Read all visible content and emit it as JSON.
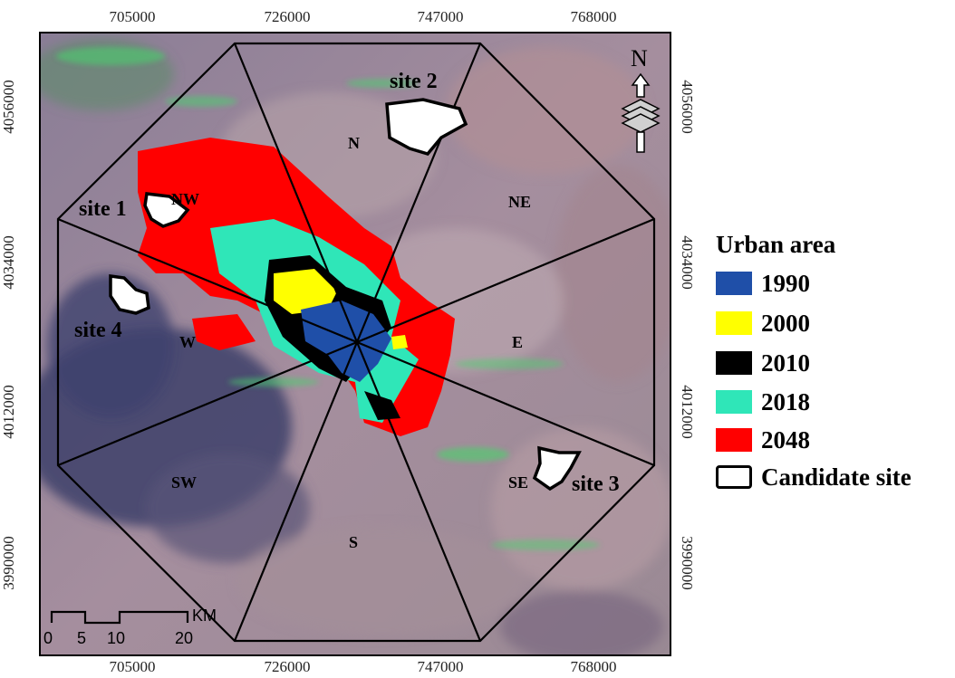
{
  "map": {
    "x_ticks": [
      "705000",
      "726000",
      "747000",
      "768000"
    ],
    "y_ticks": [
      "4056000",
      "4034000",
      "4012000",
      "3990000"
    ],
    "sectors": [
      "N",
      "NE",
      "E",
      "SE",
      "S",
      "SW",
      "W",
      "NW"
    ],
    "sites": [
      "site 1",
      "site 2",
      "site 3",
      "site 4"
    ],
    "north_arrow_label": "N",
    "scale_bar": {
      "unit": "KM",
      "labels": [
        "0",
        "5",
        "10",
        "20"
      ]
    }
  },
  "legend": {
    "title": "Urban area",
    "items": [
      {
        "label": "1990",
        "color": "#1f4fa8"
      },
      {
        "label": "2000",
        "color": "#ffff00"
      },
      {
        "label": "2010",
        "color": "#000000"
      },
      {
        "label": "2018",
        "color": "#2fe6b8"
      },
      {
        "label": "2048",
        "color": "#ff0000"
      },
      {
        "label": "Candidate site",
        "color": "#ffffff"
      }
    ]
  }
}
